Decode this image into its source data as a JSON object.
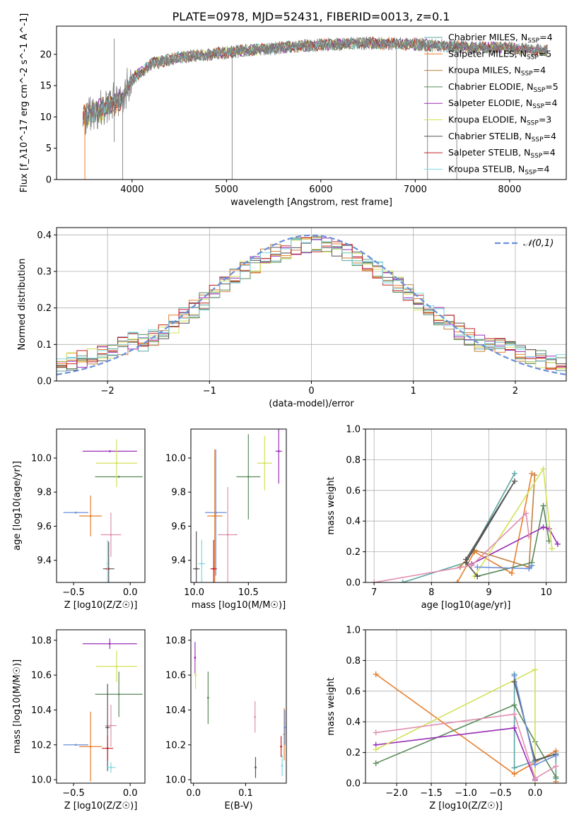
{
  "title": "PLATE=0978, MJD=52431, FIBERID=0013, z=0.1",
  "colors": {
    "s1": "#1f77b4-ish teal #4fa6a0",
    "palette": [
      "#5aa6a3",
      "#e87f2e",
      "#c08040",
      "#5a8a5a",
      "#9b2fb7",
      "#d4e157",
      "#555555",
      "#c42020",
      "#7fd8e0"
    ]
  },
  "chart_data": [
    {
      "type": "line",
      "name": "spectrum",
      "xlabel": "wavelength [Angstrom, rest frame]",
      "ylabel": "Flux [f_λ10^-17 erg cm^-2 s^-1 A^-1]",
      "xlim": [
        3200,
        8600
      ],
      "ylim": [
        0,
        24.5
      ],
      "xticks": [
        4000,
        5000,
        6000,
        7000,
        8000
      ],
      "yticks": [
        0,
        5,
        10,
        15,
        20
      ],
      "legend_position": "upper right",
      "series": [
        {
          "name": "Chabrier MILES, N_SSP=4",
          "color": "#5aa6a3"
        },
        {
          "name": "Salpeter MILES, N_SSP=5",
          "color": "#e87f2e"
        },
        {
          "name": "Kroupa MILES, N_SSP=4",
          "color": "#c08040"
        },
        {
          "name": "Chabrier ELODIE, N_SSP=5",
          "color": "#5a8a5a"
        },
        {
          "name": "Salpeter ELODIE, N_SSP=4",
          "color": "#9b2fb7"
        },
        {
          "name": "Kroupa ELODIE, N_SSP=3",
          "color": "#d4e157"
        },
        {
          "name": "Chabrier STELIB, N_SSP=4",
          "color": "#555555"
        },
        {
          "name": "Salpeter STELIB, N_SSP=4",
          "color": "#c42020"
        },
        {
          "name": "Kroupa STELIB, N_SSP=4",
          "color": "#7fd8e0"
        }
      ],
      "data_color": "#808080",
      "continuum": {
        "x": [
          3500,
          3700,
          3900,
          4000,
          4200,
          4500,
          5000,
          5500,
          6000,
          6500,
          7000,
          7500,
          8000,
          8400
        ],
        "y": [
          10,
          11.5,
          13,
          16,
          18.5,
          19.5,
          20.3,
          21,
          21.5,
          21.8,
          21.6,
          21.2,
          21,
          20.5
        ]
      }
    },
    {
      "type": "bar",
      "name": "residual-histogram",
      "xlabel": "(data-model)/error",
      "ylabel": "Normed distribution",
      "xlim": [
        -2.5,
        2.5
      ],
      "ylim": [
        0,
        0.42
      ],
      "xticks": [
        -2,
        -1,
        0,
        1,
        2
      ],
      "yticks": [
        0.0,
        0.1,
        0.2,
        0.3,
        0.4
      ],
      "reference_curve": "𝒩(0,1)",
      "reference_color": "#6a8fd8",
      "grid": true
    },
    {
      "type": "scatter",
      "name": "z-age",
      "xlabel": "Z [log10(Z/Z☉)]",
      "ylabel": "age  [log10(age/yr)]",
      "xlim": [
        -0.65,
        0.13
      ],
      "ylim": [
        9.27,
        10.17
      ],
      "xticks": [
        -0.5,
        0.0
      ],
      "yticks": [
        9.4,
        9.6,
        9.8,
        10.0
      ],
      "points": [
        {
          "x": -0.48,
          "y": 9.68,
          "xerr": 0.11,
          "yerr": 0.0,
          "color": "#6a8fd8"
        },
        {
          "x": -0.35,
          "y": 9.66,
          "xerr": 0.1,
          "yerr": 0.12,
          "color": "#e87f2e"
        },
        {
          "x": -0.17,
          "y": 9.55,
          "xerr": 0.09,
          "yerr": 0.13,
          "color": "#e08fb0"
        },
        {
          "x": -0.1,
          "y": 9.89,
          "xerr": 0.21,
          "yerr": 0.0,
          "color": "#5a8a5a"
        },
        {
          "x": -0.18,
          "y": 10.04,
          "xerr": 0.24,
          "yerr": 0.0,
          "color": "#9b2fb7"
        },
        {
          "x": -0.12,
          "y": 9.97,
          "xerr": 0.18,
          "yerr": 0.14,
          "color": "#d4e157"
        },
        {
          "x": -0.19,
          "y": 9.35,
          "xerr": 0.05,
          "yerr": 0.16,
          "color": "#555555"
        },
        {
          "x": -0.2,
          "y": 9.35,
          "xerr": 0.02,
          "yerr": 0.0,
          "color": "#c42020"
        },
        {
          "x": -0.2,
          "y": 9.38,
          "xerr": 0.0,
          "yerr": 0.14,
          "color": "#7fd8e0"
        }
      ]
    },
    {
      "type": "scatter",
      "name": "mass-age",
      "xlabel": "mass [log10(M/M☉)]",
      "ylabel": "",
      "xlim": [
        9.97,
        10.85
      ],
      "ylim": [
        9.27,
        10.17
      ],
      "xticks": [
        10.0,
        10.5
      ],
      "yticks": [
        9.4,
        9.6,
        9.8,
        10.0
      ],
      "points": [
        {
          "x": 10.2,
          "y": 9.68,
          "xerr": 0.1,
          "yerr": 0.37,
          "color": "#6a8fd8"
        },
        {
          "x": 10.19,
          "y": 9.66,
          "xerr": 0.07,
          "yerr": 0.39,
          "color": "#e87f2e"
        },
        {
          "x": 10.31,
          "y": 9.55,
          "xerr": 0.09,
          "yerr": 0.28,
          "color": "#e08fb0"
        },
        {
          "x": 10.5,
          "y": 9.89,
          "xerr": 0.11,
          "yerr": 0.25,
          "color": "#5a8a5a"
        },
        {
          "x": 10.78,
          "y": 10.04,
          "xerr": 0.03,
          "yerr": 0.19,
          "color": "#9b2fb7"
        },
        {
          "x": 10.65,
          "y": 9.97,
          "xerr": 0.07,
          "yerr": 0.16,
          "color": "#d4e157"
        },
        {
          "x": 10.02,
          "y": 9.35,
          "xerr": 0.03,
          "yerr": 0.22,
          "color": "#555555"
        },
        {
          "x": 10.18,
          "y": 9.35,
          "xerr": 0.03,
          "yerr": 0.17,
          "color": "#c42020"
        },
        {
          "x": 10.07,
          "y": 9.38,
          "xerr": 0.03,
          "yerr": 0.14,
          "color": "#7fd8e0"
        }
      ]
    },
    {
      "type": "line",
      "name": "age-massweight",
      "xlabel": "age  [log10(age/yr)]",
      "ylabel": "mass weight",
      "xlim": [
        6.85,
        10.35
      ],
      "ylim": [
        0,
        1.0
      ],
      "xticks": [
        7,
        8,
        9,
        10
      ],
      "yticks": [
        0.0,
        0.2,
        0.4,
        0.6,
        0.8,
        1.0
      ],
      "grid": true
    },
    {
      "type": "scatter",
      "name": "z-mass",
      "xlabel": "Z [log10(Z/Z☉)]",
      "ylabel": "mass [log10(M/M☉)]",
      "xlim": [
        -0.65,
        0.13
      ],
      "ylim": [
        9.98,
        10.86
      ],
      "xticks": [
        -0.5,
        0.0
      ],
      "yticks": [
        10.0,
        10.2,
        10.4,
        10.6,
        10.8
      ]
    },
    {
      "type": "scatter",
      "name": "ebv-mass",
      "xlabel": "E(B-V)",
      "ylabel": "",
      "xlim": [
        -0.005,
        0.178
      ],
      "ylim": [
        9.98,
        10.86
      ],
      "xticks": [
        0.0,
        0.1
      ],
      "yticks": [
        10.0,
        10.2,
        10.4,
        10.6,
        10.8
      ]
    },
    {
      "type": "line",
      "name": "z-massweight",
      "xlabel": "Z [log10(Z/Z☉)]",
      "ylabel": "mass weight",
      "xlim": [
        -2.45,
        0.45
      ],
      "ylim": [
        0,
        1.0
      ],
      "xticks": [
        -2.0,
        -1.5,
        -1.0,
        -0.5,
        0.0
      ],
      "yticks": [
        0.0,
        0.2,
        0.4,
        0.6,
        0.8,
        1.0
      ],
      "grid": true
    }
  ]
}
